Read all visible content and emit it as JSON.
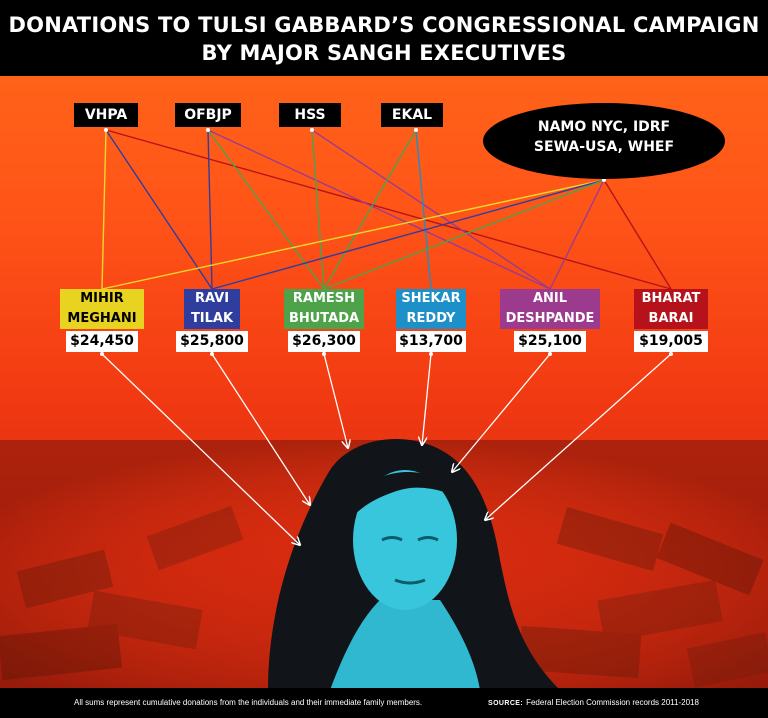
{
  "title": {
    "line1": "DONATIONS TO TULSI GABBARD’S CONGRESSIONAL CAMPAIGN",
    "line2": "BY MAJOR SANGH EXECUTIVES"
  },
  "organizations": [
    {
      "id": "vhpa",
      "label": "VHPA"
    },
    {
      "id": "ofbjp",
      "label": "OFBJP"
    },
    {
      "id": "hss",
      "label": "HSS"
    },
    {
      "id": "ekal",
      "label": "EKAL"
    },
    {
      "id": "namo",
      "line1": "NAMO NYC, IDRF",
      "line2": "SEWA-USA, WHEF"
    }
  ],
  "people": [
    {
      "id": "meghani",
      "first": "MIHIR",
      "last": "MEGHANI",
      "amount": "$24,450",
      "color": "#e8d321"
    },
    {
      "id": "tilak",
      "first": "RAVI",
      "last": "TILAK",
      "amount": "$25,800",
      "color": "#2f3e9e"
    },
    {
      "id": "bhutada",
      "first": "RAMESH",
      "last": "BHUTADA",
      "amount": "$26,300",
      "color": "#4ea24a"
    },
    {
      "id": "reddy",
      "first": "SHEKAR",
      "last": "REDDY",
      "amount": "$13,700",
      "color": "#1d8fc9"
    },
    {
      "id": "deshpande",
      "first": "ANIL",
      "last": "DESHPANDE",
      "amount": "$25,100",
      "color": "#9c3b8e"
    },
    {
      "id": "barai",
      "first": "BHARAT",
      "last": "BARAI",
      "amount": "$19,005",
      "color": "#b5121b"
    }
  ],
  "connections": [
    {
      "from": "vhpa",
      "to": "meghani",
      "color": "#f2d72a"
    },
    {
      "from": "vhpa",
      "to": "tilak",
      "color": "#2f3e9e"
    },
    {
      "from": "vhpa",
      "to": "barai",
      "color": "#b5121b"
    },
    {
      "from": "ofbjp",
      "to": "tilak",
      "color": "#2f3e9e"
    },
    {
      "from": "ofbjp",
      "to": "bhutada",
      "color": "#4ea24a"
    },
    {
      "from": "ofbjp",
      "to": "deshpande",
      "color": "#9c3b8e"
    },
    {
      "from": "hss",
      "to": "bhutada",
      "color": "#4ea24a"
    },
    {
      "from": "hss",
      "to": "deshpande",
      "color": "#9c3b8e"
    },
    {
      "from": "ekal",
      "to": "bhutada",
      "color": "#4ea24a"
    },
    {
      "from": "ekal",
      "to": "reddy",
      "color": "#1d8fc9"
    },
    {
      "from": "namo",
      "to": "meghani",
      "color": "#f2d72a"
    },
    {
      "from": "namo",
      "to": "tilak",
      "color": "#2f3e9e"
    },
    {
      "from": "namo",
      "to": "bhutada",
      "color": "#4ea24a"
    },
    {
      "from": "namo",
      "to": "deshpande",
      "color": "#9c3b8e"
    },
    {
      "from": "namo",
      "to": "barai",
      "color": "#b5121b"
    }
  ],
  "footer": {
    "note": "All sums represent cumulative donations from the individuals and their immediate family members.",
    "source_label": "SOURCE:",
    "source_text": "Federal Election Commission records 2011-2018"
  }
}
